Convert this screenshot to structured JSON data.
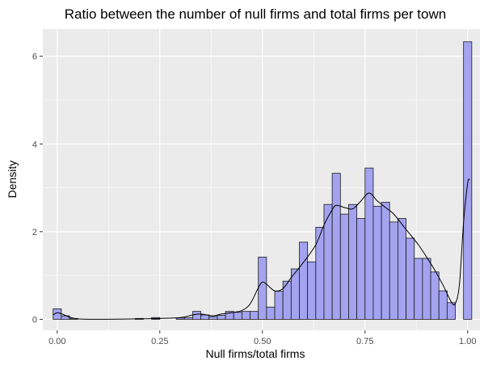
{
  "chart_data": {
    "type": "bar",
    "subtype": "histogram-with-density-curve",
    "title": "Ratio between the number of null firms and total firms per town",
    "xlabel": "Null firms/total firms",
    "ylabel": "Density",
    "xlim": [
      -0.035,
      1.03
    ],
    "ylim": [
      -0.25,
      6.62
    ],
    "xticks": [
      {
        "value": 0.0,
        "label": "0.00"
      },
      {
        "value": 0.25,
        "label": "0.25"
      },
      {
        "value": 0.5,
        "label": "0.50"
      },
      {
        "value": 0.75,
        "label": "0.75"
      },
      {
        "value": 1.0,
        "label": "1.00"
      }
    ],
    "yticks": [
      {
        "value": 0,
        "label": "0"
      },
      {
        "value": 2,
        "label": "2"
      },
      {
        "value": 4,
        "label": "4"
      },
      {
        "value": 6,
        "label": "6"
      }
    ],
    "grid": true,
    "bin_width": 0.02,
    "bins": [
      {
        "x0": -0.01,
        "x1": 0.01,
        "density": 0.24
      },
      {
        "x0": 0.01,
        "x1": 0.03,
        "density": 0.08
      },
      {
        "x0": 0.03,
        "x1": 0.05,
        "density": 0.02
      },
      {
        "x0": 0.19,
        "x1": 0.21,
        "density": 0.02
      },
      {
        "x0": 0.23,
        "x1": 0.25,
        "density": 0.04
      },
      {
        "x0": 0.29,
        "x1": 0.31,
        "density": 0.03
      },
      {
        "x0": 0.31,
        "x1": 0.33,
        "density": 0.04
      },
      {
        "x0": 0.33,
        "x1": 0.35,
        "density": 0.18
      },
      {
        "x0": 0.35,
        "x1": 0.37,
        "density": 0.1
      },
      {
        "x0": 0.37,
        "x1": 0.39,
        "density": 0.06
      },
      {
        "x0": 0.39,
        "x1": 0.41,
        "density": 0.09
      },
      {
        "x0": 0.41,
        "x1": 0.43,
        "density": 0.18
      },
      {
        "x0": 0.43,
        "x1": 0.45,
        "density": 0.16
      },
      {
        "x0": 0.45,
        "x1": 0.47,
        "density": 0.18
      },
      {
        "x0": 0.47,
        "x1": 0.49,
        "density": 0.18
      },
      {
        "x0": 0.49,
        "x1": 0.51,
        "density": 1.42
      },
      {
        "x0": 0.51,
        "x1": 0.53,
        "density": 0.28
      },
      {
        "x0": 0.53,
        "x1": 0.55,
        "density": 0.64
      },
      {
        "x0": 0.55,
        "x1": 0.57,
        "density": 0.87
      },
      {
        "x0": 0.57,
        "x1": 0.59,
        "density": 1.15
      },
      {
        "x0": 0.59,
        "x1": 0.61,
        "density": 1.76
      },
      {
        "x0": 0.61,
        "x1": 0.63,
        "density": 1.31
      },
      {
        "x0": 0.63,
        "x1": 0.65,
        "density": 2.1
      },
      {
        "x0": 0.65,
        "x1": 0.67,
        "density": 2.62
      },
      {
        "x0": 0.67,
        "x1": 0.69,
        "density": 3.33
      },
      {
        "x0": 0.69,
        "x1": 0.71,
        "density": 2.4
      },
      {
        "x0": 0.71,
        "x1": 0.73,
        "density": 2.62
      },
      {
        "x0": 0.73,
        "x1": 0.75,
        "density": 2.3
      },
      {
        "x0": 0.75,
        "x1": 0.77,
        "density": 3.45
      },
      {
        "x0": 0.77,
        "x1": 0.79,
        "density": 2.58
      },
      {
        "x0": 0.79,
        "x1": 0.81,
        "density": 2.67
      },
      {
        "x0": 0.81,
        "x1": 0.83,
        "density": 2.22
      },
      {
        "x0": 0.83,
        "x1": 0.85,
        "density": 2.3
      },
      {
        "x0": 0.85,
        "x1": 0.87,
        "density": 1.85
      },
      {
        "x0": 0.87,
        "x1": 0.89,
        "density": 1.39
      },
      {
        "x0": 0.89,
        "x1": 0.91,
        "density": 1.39
      },
      {
        "x0": 0.91,
        "x1": 0.93,
        "density": 1.08
      },
      {
        "x0": 0.93,
        "x1": 0.95,
        "density": 0.65
      },
      {
        "x0": 0.95,
        "x1": 0.97,
        "density": 0.38
      },
      {
        "x0": 0.99,
        "x1": 1.01,
        "density": 6.33
      }
    ],
    "density_curve": {
      "x": [
        -0.01,
        0.0,
        0.01,
        0.03,
        0.05,
        0.1,
        0.2,
        0.25,
        0.3,
        0.33,
        0.35,
        0.38,
        0.4,
        0.43,
        0.45,
        0.47,
        0.49,
        0.5,
        0.51,
        0.53,
        0.55,
        0.57,
        0.6,
        0.63,
        0.65,
        0.67,
        0.68,
        0.7,
        0.72,
        0.74,
        0.76,
        0.78,
        0.8,
        0.82,
        0.85,
        0.88,
        0.9,
        0.92,
        0.94,
        0.96,
        0.97,
        0.98,
        0.99,
        1.0,
        1.005
      ],
      "y": [
        0.1,
        0.15,
        0.13,
        0.05,
        0.01,
        0.0,
        0.01,
        0.02,
        0.04,
        0.1,
        0.12,
        0.08,
        0.12,
        0.16,
        0.2,
        0.35,
        0.72,
        0.85,
        0.8,
        0.65,
        0.7,
        0.95,
        1.3,
        1.7,
        2.15,
        2.5,
        2.6,
        2.55,
        2.52,
        2.7,
        2.88,
        2.7,
        2.55,
        2.4,
        2.05,
        1.7,
        1.42,
        1.12,
        0.78,
        0.4,
        0.36,
        0.8,
        2.2,
        3.1,
        3.18
      ]
    },
    "colors": {
      "panel": "#ebebeb",
      "grid_major": "#ffffff",
      "bar_fill": "#a3a3f0",
      "bar_stroke": "#1a1a1a",
      "curve": "#000000"
    }
  }
}
